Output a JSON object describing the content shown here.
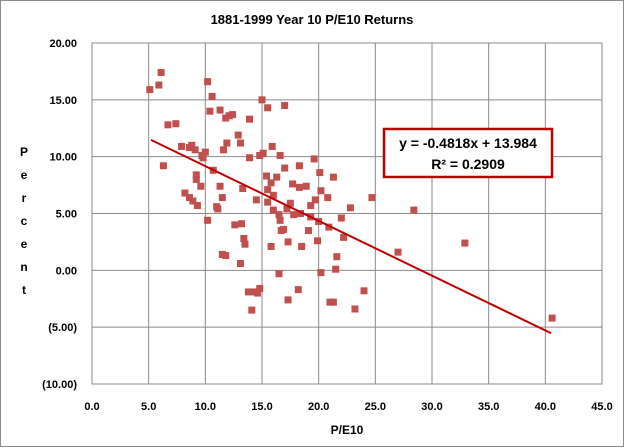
{
  "chart_data": {
    "type": "scatter",
    "title": "1881-1999 Year 10 P/E10 Returns",
    "xlabel": "P/E10",
    "ylabel": "Percent",
    "xlim": [
      0,
      45
    ],
    "ylim": [
      -10,
      20
    ],
    "x_ticks": [
      0,
      5,
      10,
      15,
      20,
      25,
      30,
      35,
      40,
      45
    ],
    "x_tick_labels": [
      "0.0",
      "5.0",
      "10.0",
      "15.0",
      "20.0",
      "25.0",
      "30.0",
      "35.0",
      "40.0",
      "45.0"
    ],
    "y_ticks": [
      20,
      15,
      10,
      5,
      0,
      -5,
      -10
    ],
    "y_tick_labels": [
      "20.00",
      "15.00",
      "10.00",
      "5.00",
      "0.00",
      "(5.00)",
      "(10.00)"
    ],
    "grid": true,
    "marker_color": "#c0504d",
    "trendline": {
      "slope": -0.4818,
      "intercept": 13.984,
      "x_range": [
        5.2,
        40.5
      ],
      "color": "#c00000",
      "equation": "y = -0.4818x + 13.984",
      "r_squared": "R² = 0.2909"
    },
    "points": [
      [
        5.1,
        15.9
      ],
      [
        5.9,
        16.3
      ],
      [
        6.1,
        17.4
      ],
      [
        6.3,
        9.2
      ],
      [
        6.7,
        12.8
      ],
      [
        7.4,
        12.9
      ],
      [
        7.9,
        10.9
      ],
      [
        8.2,
        6.8
      ],
      [
        8.6,
        10.8
      ],
      [
        8.6,
        6.4
      ],
      [
        8.8,
        11.0
      ],
      [
        8.9,
        6.1
      ],
      [
        9.1,
        10.6
      ],
      [
        9.2,
        8.4
      ],
      [
        9.2,
        8.0
      ],
      [
        9.3,
        5.7
      ],
      [
        9.6,
        7.4
      ],
      [
        9.7,
        10.1
      ],
      [
        9.8,
        9.9
      ],
      [
        10.0,
        10.4
      ],
      [
        10.2,
        16.6
      ],
      [
        10.2,
        4.4
      ],
      [
        10.4,
        14.0
      ],
      [
        10.6,
        15.3
      ],
      [
        10.7,
        8.8
      ],
      [
        11.0,
        5.6
      ],
      [
        11.1,
        5.4
      ],
      [
        11.3,
        7.4
      ],
      [
        11.3,
        14.1
      ],
      [
        11.5,
        6.4
      ],
      [
        11.5,
        1.4
      ],
      [
        11.6,
        10.6
      ],
      [
        11.8,
        13.4
      ],
      [
        11.8,
        1.3
      ],
      [
        11.9,
        11.2
      ],
      [
        12.1,
        13.6
      ],
      [
        12.4,
        13.7
      ],
      [
        12.6,
        4.0
      ],
      [
        12.9,
        11.9
      ],
      [
        13.1,
        11.2
      ],
      [
        13.1,
        0.6
      ],
      [
        13.2,
        4.1
      ],
      [
        13.3,
        7.2
      ],
      [
        13.4,
        2.8
      ],
      [
        13.5,
        2.3
      ],
      [
        13.8,
        -1.9
      ],
      [
        13.9,
        13.3
      ],
      [
        13.9,
        9.9
      ],
      [
        14.1,
        -3.5
      ],
      [
        14.2,
        -1.9
      ],
      [
        14.5,
        6.2
      ],
      [
        14.6,
        -2.0
      ],
      [
        14.8,
        -1.6
      ],
      [
        14.8,
        10.1
      ],
      [
        15.0,
        15.0
      ],
      [
        15.1,
        10.3
      ],
      [
        15.4,
        8.3
      ],
      [
        15.5,
        7.1
      ],
      [
        15.5,
        14.3
      ],
      [
        15.5,
        6.0
      ],
      [
        15.8,
        2.1
      ],
      [
        15.8,
        7.7
      ],
      [
        15.9,
        10.9
      ],
      [
        16.0,
        6.6
      ],
      [
        16.0,
        5.3
      ],
      [
        16.3,
        8.2
      ],
      [
        16.5,
        -0.3
      ],
      [
        16.5,
        4.9
      ],
      [
        16.6,
        10.1
      ],
      [
        16.6,
        4.4
      ],
      [
        16.7,
        3.5
      ],
      [
        16.9,
        3.6
      ],
      [
        17.0,
        14.5
      ],
      [
        17.0,
        9.0
      ],
      [
        17.2,
        5.4
      ],
      [
        17.3,
        2.5
      ],
      [
        17.3,
        -2.6
      ],
      [
        17.5,
        5.9
      ],
      [
        17.7,
        7.6
      ],
      [
        17.8,
        4.9
      ],
      [
        18.2,
        -1.7
      ],
      [
        18.3,
        7.3
      ],
      [
        18.3,
        9.2
      ],
      [
        18.4,
        5.0
      ],
      [
        18.5,
        2.1
      ],
      [
        18.9,
        7.4
      ],
      [
        19.1,
        3.5
      ],
      [
        19.3,
        4.7
      ],
      [
        19.3,
        5.7
      ],
      [
        19.6,
        9.8
      ],
      [
        19.7,
        6.2
      ],
      [
        19.9,
        2.6
      ],
      [
        20.0,
        4.3
      ],
      [
        20.1,
        8.6
      ],
      [
        20.2,
        -0.2
      ],
      [
        20.2,
        7.0
      ],
      [
        20.8,
        6.4
      ],
      [
        20.9,
        3.8
      ],
      [
        21.0,
        -2.8
      ],
      [
        21.3,
        8.2
      ],
      [
        21.3,
        -2.8
      ],
      [
        21.5,
        0.1
      ],
      [
        21.6,
        1.2
      ],
      [
        22.0,
        4.6
      ],
      [
        22.2,
        2.9
      ],
      [
        22.8,
        5.5
      ],
      [
        23.2,
        -3.4
      ],
      [
        24.0,
        -1.8
      ],
      [
        24.7,
        6.4
      ],
      [
        27.0,
        1.6
      ],
      [
        28.4,
        5.3
      ],
      [
        32.9,
        2.4
      ],
      [
        40.6,
        -4.2
      ]
    ]
  },
  "colors": {
    "grid": "#8a8a8a",
    "plot_border": "#8a8a8a",
    "eq_box_border": "#c00000"
  }
}
